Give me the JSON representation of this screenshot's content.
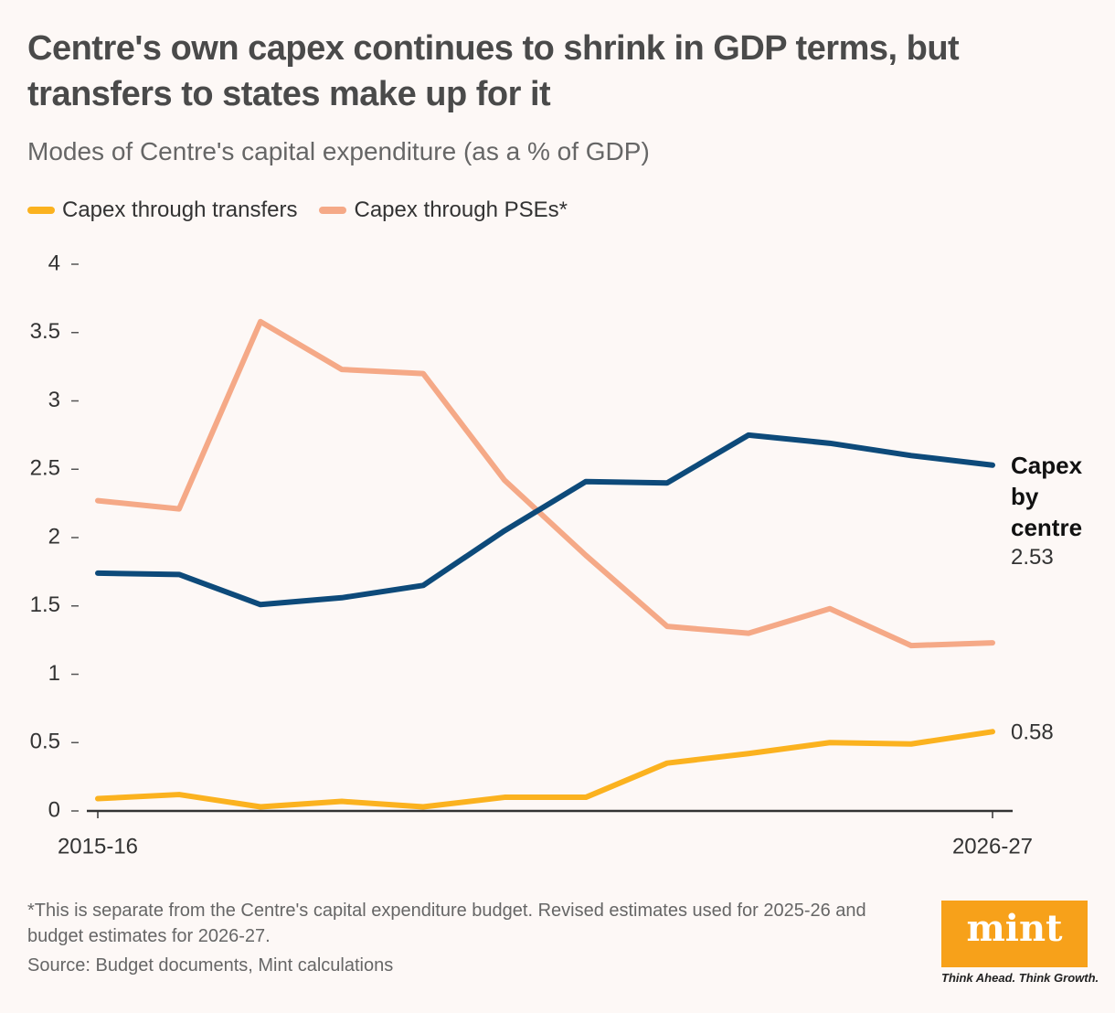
{
  "chart_data": {
    "type": "line",
    "title": "Centre's own capex continues to shrink in GDP terms, but transfers to states make up for it",
    "subtitle": "Modes of Centre's capital expenditure (as a % of GDP)",
    "categories": [
      "2015-16",
      null,
      null,
      null,
      null,
      null,
      null,
      null,
      null,
      null,
      null,
      "2026-27"
    ],
    "series": [
      {
        "name": "Capex through transfers",
        "color": "#fbb21f",
        "in_legend": true,
        "end_value_label": true,
        "values": [
          0.09,
          0.12,
          0.03,
          0.07,
          0.03,
          0.1,
          0.1,
          0.35,
          0.42,
          0.5,
          0.49,
          0.58
        ]
      },
      {
        "name": "Capex through PSEs*",
        "color": "#f5a987",
        "in_legend": true,
        "end_value_label": false,
        "values": [
          2.27,
          2.21,
          3.58,
          3.23,
          3.2,
          2.42,
          1.87,
          1.35,
          1.3,
          1.48,
          1.21,
          1.23
        ]
      },
      {
        "name": "Capex by centre",
        "color": "#0d4a7a",
        "in_legend": false,
        "end_value_label": true,
        "values": [
          1.74,
          1.73,
          1.51,
          1.56,
          1.65,
          2.05,
          2.41,
          2.4,
          2.75,
          2.69,
          2.6,
          2.53
        ]
      }
    ],
    "ylim": [
      0,
      4
    ],
    "yticks": [
      0,
      0.5,
      1,
      1.5,
      2,
      2.5,
      3,
      3.5,
      4
    ],
    "grid": false
  },
  "footnote": "*This is separate from the Centre's capital expenditure budget. Revised estimates used for 2025-26 and budget estimates for 2026-27.",
  "source": "Source: Budget documents, Mint calculations",
  "logo": {
    "name": "mint",
    "tagline": "Think Ahead. Think Growth."
  }
}
